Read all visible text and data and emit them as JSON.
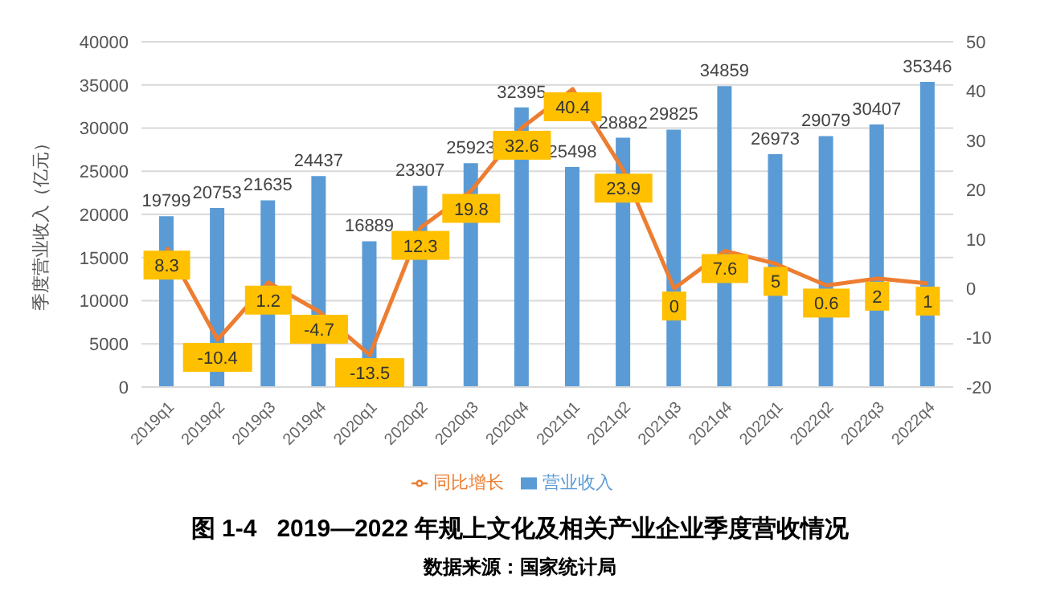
{
  "chart_data": {
    "type": "bar",
    "title": "图 1-4   2019—2022 年规上文化及相关产业企业季度营收情况",
    "annotations": [
      "数据来源：国家统计局"
    ],
    "ylabel": "季度营业收入（亿元）",
    "categories": [
      "2019q1",
      "2019q2",
      "2019q3",
      "2019q4",
      "2020q1",
      "2020q2",
      "2020q3",
      "2020q4",
      "2021q1",
      "2021q2",
      "2021q3",
      "2021q4",
      "2022q1",
      "2022q2",
      "2022q3",
      "2022q4"
    ],
    "series": [
      {
        "name": "营业收入",
        "color": "#5b9bd5",
        "values": [
          19799,
          20753,
          21635,
          24437,
          16889,
          23307,
          25923,
          32395,
          25498,
          28882,
          29825,
          34859,
          26973,
          29079,
          30407,
          35346
        ]
      },
      {
        "name": "同比增长",
        "type": "line",
        "axis": "y2",
        "color": "#ed7d31",
        "values": [
          8.3,
          -10.4,
          1.2,
          -4.7,
          -13.5,
          12.3,
          19.8,
          32.6,
          40.4,
          23.9,
          0,
          7.6,
          5,
          0.6,
          2,
          1
        ]
      }
    ],
    "ylim": [
      0,
      40000
    ],
    "yticks": [
      0,
      5000,
      10000,
      15000,
      20000,
      25000,
      30000,
      35000,
      40000
    ],
    "y2lim": [
      -20,
      50
    ],
    "y2ticks": [
      -20,
      -10,
      0,
      10,
      20,
      30,
      40,
      50
    ],
    "grid": "y",
    "legend": "bottom",
    "data_labels": true,
    "marker": "none"
  }
}
